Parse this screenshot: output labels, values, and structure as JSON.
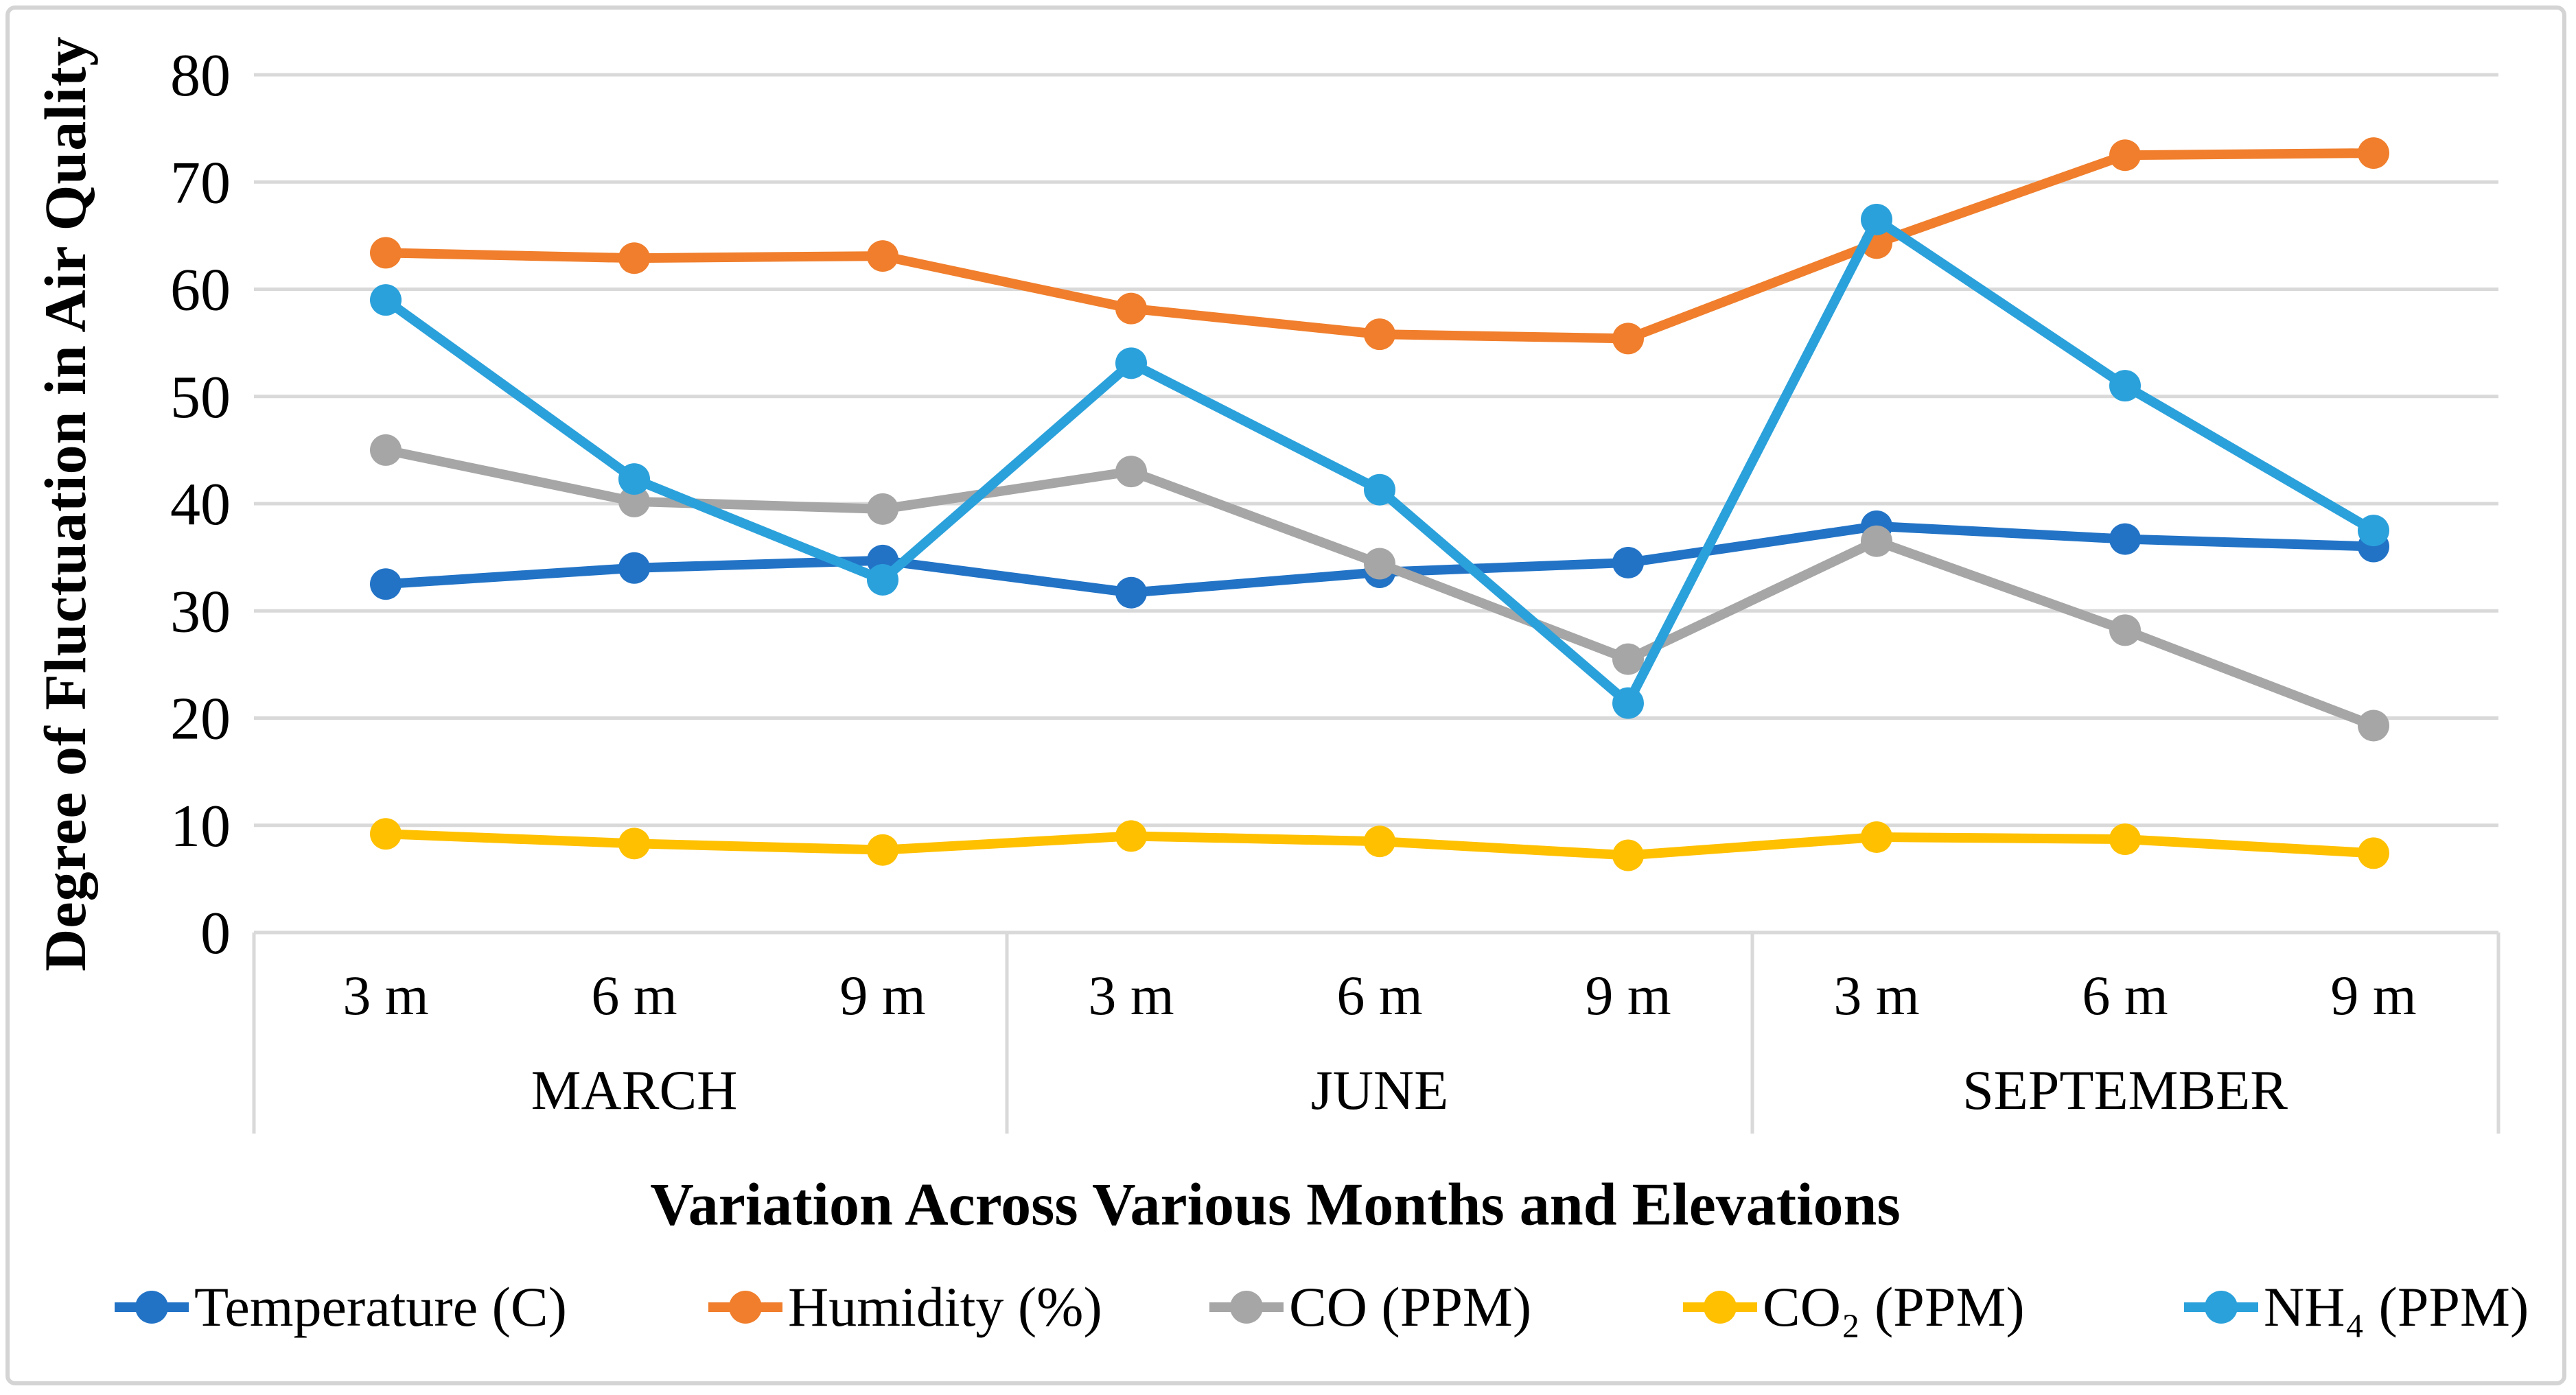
{
  "frame": {
    "background_color": "#FFFFFF",
    "border_color": "#D4D4D4",
    "gridline_color": "#D9D9D9",
    "axis_table_line_color": "#D9D9D9"
  },
  "chart_data": {
    "type": "line",
    "title": "",
    "xlabel": "Variation Across Various Months and Elevations",
    "ylabel": "Degree of Fluctuation in Air Quality",
    "ylim": [
      0,
      80
    ],
    "yticks": [
      0,
      10,
      20,
      30,
      40,
      50,
      60,
      70,
      80
    ],
    "grid": true,
    "legend_position": "bottom",
    "groups": [
      "MARCH",
      "JUNE",
      "SEPTEMBER"
    ],
    "elevations": [
      "3 m",
      "6 m",
      "9 m"
    ],
    "categories": [
      "MARCH 3 m",
      "MARCH 6 m",
      "MARCH 9 m",
      "JUNE 3 m",
      "JUNE 6 m",
      "JUNE 9 m",
      "SEPTEMBER 3 m",
      "SEPTEMBER 6 m",
      "SEPTEMBER 9 m"
    ],
    "series": [
      {
        "name": "Temperature (C)",
        "color": "#2273C6",
        "values": [
          32.5,
          34.0,
          34.7,
          31.7,
          33.6,
          34.5,
          37.9,
          36.7,
          36.0
        ]
      },
      {
        "name": "Humidity (%)",
        "color": "#F07E2C",
        "values": [
          63.4,
          62.9,
          63.1,
          58.2,
          55.8,
          55.4,
          64.3,
          72.5,
          72.7
        ]
      },
      {
        "name": "CO (PPM)",
        "color": "#A6A6A6",
        "values": [
          45.0,
          40.2,
          39.5,
          43.0,
          34.4,
          25.5,
          36.5,
          28.2,
          19.3
        ]
      },
      {
        "name": "CO₂ (PPM)",
        "color": "#FFC000",
        "values": [
          9.2,
          8.3,
          7.7,
          9.0,
          8.5,
          7.2,
          8.9,
          8.7,
          7.4
        ]
      },
      {
        "name": "NH₄ (PPM)",
        "color": "#2BA1DB",
        "values": [
          59.0,
          42.3,
          32.9,
          53.1,
          41.3,
          21.4,
          66.5,
          51.0,
          37.5
        ]
      }
    ]
  }
}
